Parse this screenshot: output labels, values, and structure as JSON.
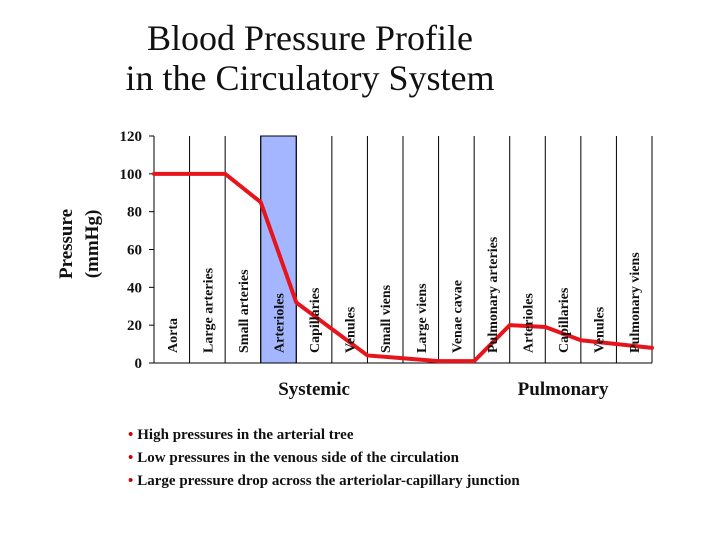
{
  "title": {
    "line1": "Blood Pressure Profile",
    "line2": "in the Circulatory System"
  },
  "bullets": [
    "High pressures in the arterial tree",
    "Low pressures in the venous side of the circulation",
    "Large pressure drop across the arteriolar-capillary junction"
  ],
  "chart_data": {
    "type": "line",
    "title": "Blood Pressure Profile in the Circulatory System",
    "ylabel_line1": "Pressure",
    "ylabel_line2": "(mmHg)",
    "ylim": [
      0,
      120
    ],
    "yticks": [
      0,
      20,
      40,
      60,
      80,
      100,
      120
    ],
    "categories": [
      "Aorta",
      "Large arteries",
      "Small arteries",
      "Arterioles",
      "Capillaries",
      "Venules",
      "Small viens",
      "Large viens",
      "Venae cavae",
      "Pulmonary arteries",
      "Arterioles",
      "Capillaries",
      "Venules",
      "Pulmonary viens"
    ],
    "highlight_category": "Arterioles",
    "highlight_color": "#a3b6ff",
    "line_color": "#e8141c",
    "groups": [
      {
        "label": "Systemic",
        "from": "Aorta",
        "to": "Venae cavae"
      },
      {
        "label": "Pulmonary",
        "from": "Pulmonary arteries",
        "to": "Pulmonary viens"
      }
    ],
    "series": [
      {
        "x": [
          0,
          2,
          3,
          4,
          6,
          8,
          9,
          10,
          11,
          12,
          14
        ],
        "y": [
          100,
          100,
          85,
          32,
          4,
          1,
          1,
          20,
          19,
          12,
          8
        ]
      }
    ],
    "grid": "vertical"
  }
}
